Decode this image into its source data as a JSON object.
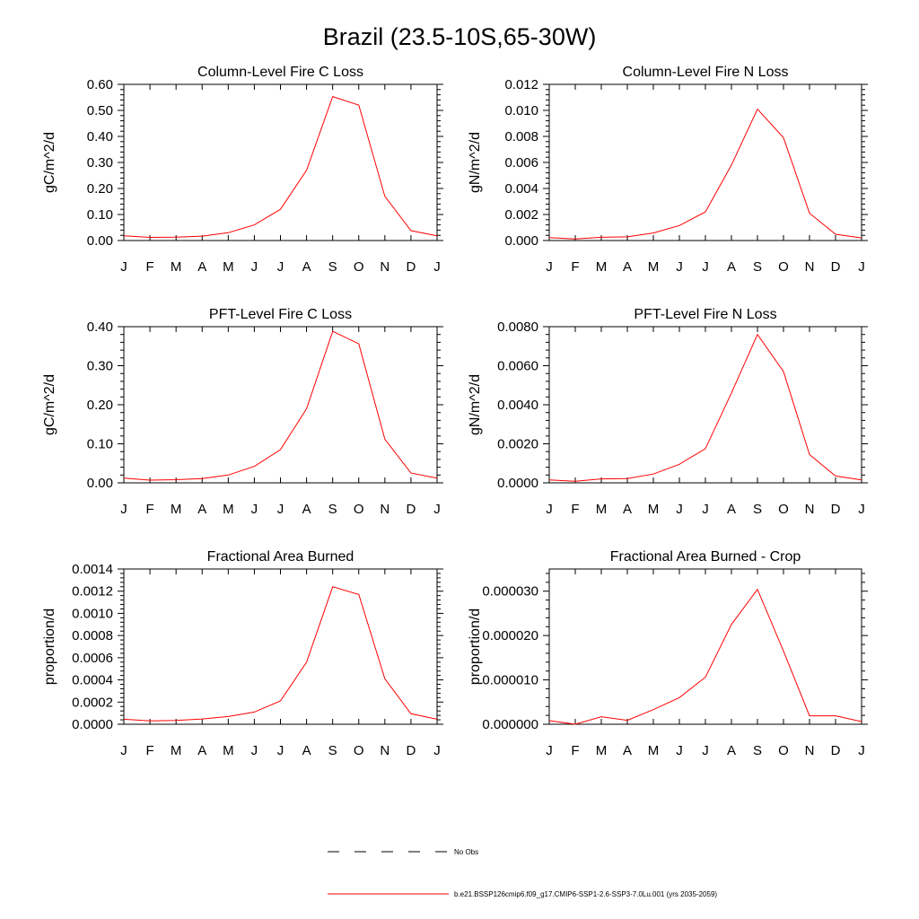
{
  "figure": {
    "title": "Brazil (23.5-10S,65-30W)"
  },
  "colors": {
    "model_line": "#ff0000",
    "obs_line": "#000000",
    "axis": "#000000"
  },
  "legend": {
    "obs_label": "No Obs",
    "model_label": "b.e21.BSSP126cmip6.f09_g17.CMIP6-SSP1-2.6-SSP3-7.0Lu.001 (yrs 2035-2059)"
  },
  "chart_data": [
    {
      "type": "line",
      "title": "Column-Level Fire C Loss",
      "xlabel": "",
      "ylabel": "gC/m^2/d",
      "categories": [
        "J",
        "F",
        "M",
        "A",
        "M",
        "J",
        "J",
        "A",
        "S",
        "O",
        "N",
        "D",
        "J"
      ],
      "yticks": [
        "0.00",
        "0.10",
        "0.20",
        "0.30",
        "0.40",
        "0.50",
        "0.60"
      ],
      "ylim": [
        0,
        0.6
      ],
      "series": [
        {
          "values": [
            0.018,
            0.012,
            0.013,
            0.017,
            0.03,
            0.06,
            0.12,
            0.27,
            0.553,
            0.52,
            0.17,
            0.038,
            0.018
          ]
        }
      ]
    },
    {
      "type": "line",
      "title": "Column-Level Fire N Loss",
      "xlabel": "",
      "ylabel": "gN/m^2/d",
      "categories": [
        "J",
        "F",
        "M",
        "A",
        "M",
        "J",
        "J",
        "A",
        "S",
        "O",
        "N",
        "D",
        "J"
      ],
      "yticks": [
        "0.000",
        "0.002",
        "0.004",
        "0.006",
        "0.008",
        "0.010",
        "0.012"
      ],
      "ylim": [
        0,
        0.012
      ],
      "series": [
        {
          "values": [
            0.00022,
            0.00012,
            0.00025,
            0.00028,
            0.00058,
            0.00115,
            0.0022,
            0.0058,
            0.0101,
            0.0079,
            0.0021,
            0.00048,
            0.0002
          ]
        }
      ]
    },
    {
      "type": "line",
      "title": "PFT-Level Fire C Loss",
      "xlabel": "",
      "ylabel": "gC/m^2/d",
      "categories": [
        "J",
        "F",
        "M",
        "A",
        "M",
        "J",
        "J",
        "A",
        "S",
        "O",
        "N",
        "D",
        "J"
      ],
      "yticks": [
        "0.00",
        "0.10",
        "0.20",
        "0.30",
        "0.40"
      ],
      "ylim": [
        0,
        0.4
      ],
      "series": [
        {
          "values": [
            0.012,
            0.007,
            0.008,
            0.011,
            0.02,
            0.042,
            0.085,
            0.19,
            0.388,
            0.356,
            0.112,
            0.025,
            0.012
          ]
        }
      ]
    },
    {
      "type": "line",
      "title": "PFT-Level Fire N Loss",
      "xlabel": "",
      "ylabel": "gN/m^2/d",
      "categories": [
        "J",
        "F",
        "M",
        "A",
        "M",
        "J",
        "J",
        "A",
        "S",
        "O",
        "N",
        "D",
        "J"
      ],
      "yticks": [
        "0.0000",
        "0.0020",
        "0.0040",
        "0.0060",
        "0.0080"
      ],
      "ylim": [
        0,
        0.008
      ],
      "series": [
        {
          "values": [
            0.00015,
            8e-05,
            0.0002,
            0.00022,
            0.00045,
            0.00095,
            0.00175,
            0.0046,
            0.0076,
            0.0057,
            0.00145,
            0.00035,
            0.00015
          ]
        }
      ]
    },
    {
      "type": "line",
      "title": "Fractional Area Burned",
      "xlabel": "",
      "ylabel": "proportion/d",
      "categories": [
        "J",
        "F",
        "M",
        "A",
        "M",
        "J",
        "J",
        "A",
        "S",
        "O",
        "N",
        "D",
        "J"
      ],
      "yticks": [
        "0.0000",
        "0.0002",
        "0.0004",
        "0.0006",
        "0.0008",
        "0.0010",
        "0.0012",
        "0.0014"
      ],
      "ylim": [
        0,
        0.0014
      ],
      "series": [
        {
          "values": [
            4.5e-05,
            3e-05,
            3.5e-05,
            4.8e-05,
            7e-05,
            0.00011,
            0.00021,
            0.00056,
            0.00124,
            0.00117,
            0.00041,
            9.5e-05,
            4.5e-05
          ]
        }
      ]
    },
    {
      "type": "line",
      "title": "Fractional Area Burned - Crop",
      "xlabel": "",
      "ylabel": "proportion/d",
      "categories": [
        "J",
        "F",
        "M",
        "A",
        "M",
        "J",
        "J",
        "A",
        "S",
        "O",
        "N",
        "D",
        "J"
      ],
      "yticks": [
        "0.000000",
        "0.000010",
        "0.000020",
        "0.000030"
      ],
      "ylim": [
        0,
        3.5e-05
      ],
      "series": [
        {
          "values": [
            8e-07,
            0.0,
            1.7e-06,
            9e-07,
            3.3e-06,
            6e-06,
            1.06e-05,
            2.25e-05,
            3.04e-05,
            1.65e-05,
            1.9e-06,
            1.9e-06,
            6e-07
          ]
        }
      ]
    }
  ]
}
